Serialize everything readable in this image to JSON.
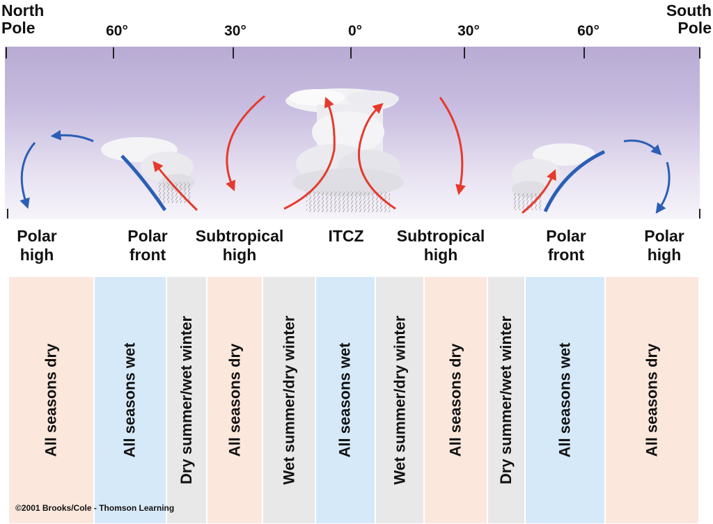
{
  "poles": {
    "north_line1": "North",
    "north_line2": "Pole",
    "south_line1": "South",
    "south_line2": "Pole"
  },
  "latitudes": [
    "60°",
    "30°",
    "0°",
    "30°",
    "60°"
  ],
  "pressure_zones": [
    {
      "line1": "Polar",
      "line2": "high"
    },
    {
      "line1": "Polar",
      "line2": "front"
    },
    {
      "line1": "Subtropical",
      "line2": "high"
    },
    {
      "line1": "ITCZ",
      "line2": ""
    },
    {
      "line1": "Subtropical",
      "line2": "high"
    },
    {
      "line1": "Polar",
      "line2": "front"
    },
    {
      "line1": "Polar",
      "line2": "high"
    }
  ],
  "precip_bands": [
    {
      "label": "All seasons dry",
      "kind": "dry"
    },
    {
      "label": "All seasons wet",
      "kind": "wet"
    },
    {
      "label": "Dry summer/wet winter",
      "kind": "seasonal"
    },
    {
      "label": "All seasons dry",
      "kind": "dry"
    },
    {
      "label": "Wet summer/dry winter",
      "kind": "seasonal"
    },
    {
      "label": "All seasons wet",
      "kind": "wet"
    },
    {
      "label": "Wet summer/dry winter",
      "kind": "seasonal"
    },
    {
      "label": "All seasons dry",
      "kind": "dry"
    },
    {
      "label": "Dry summer/wet winter",
      "kind": "seasonal"
    },
    {
      "label": "All seasons wet",
      "kind": "wet"
    },
    {
      "label": "All seasons dry",
      "kind": "dry"
    }
  ],
  "colors": {
    "rising_air": "#e53a2c",
    "cold_air": "#2b5fb4",
    "front": "#2b5fb4",
    "dry_band": "#fbe7dc",
    "wet_band": "#d6e9f8",
    "seasonal_band": "#e8e8e8"
  },
  "copyright": "©2001 Brooks/Cole - Thomson Learning"
}
